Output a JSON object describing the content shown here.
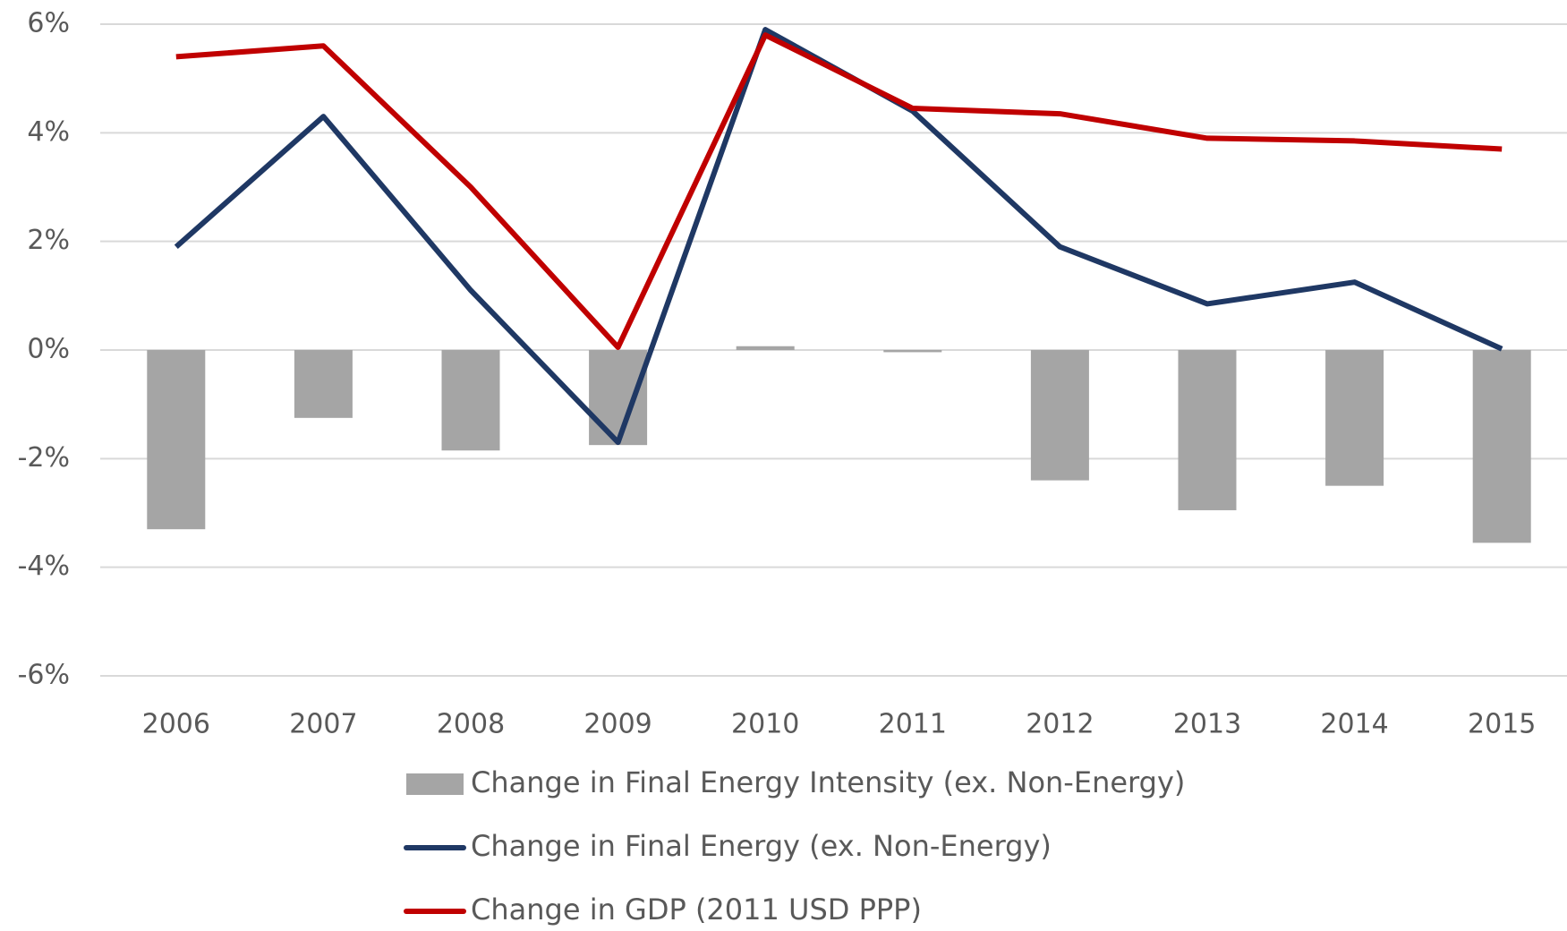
{
  "chart_data": {
    "type": "combo",
    "categories": [
      "2006",
      "2007",
      "2008",
      "2009",
      "2010",
      "2011",
      "2012",
      "2013",
      "2014",
      "2015"
    ],
    "series": [
      {
        "name": "Change in Final Energy Intensity (ex. Non-Energy)",
        "type": "bar",
        "color": "#a5a5a5",
        "values": [
          -3.3,
          -1.25,
          -1.85,
          -1.75,
          0.07,
          -0.04,
          -2.4,
          -2.95,
          -2.5,
          -3.55
        ]
      },
      {
        "name": "Change in Final Energy (ex. Non-Energy)",
        "type": "line",
        "color": "#1f3864",
        "values": [
          1.9,
          4.3,
          1.1,
          -1.7,
          5.9,
          4.4,
          1.9,
          0.85,
          1.25,
          0.02
        ]
      },
      {
        "name": "Change in GDP (2011 USD PPP)",
        "type": "line",
        "color": "#c00000",
        "values": [
          5.4,
          5.6,
          3.0,
          0.05,
          5.8,
          4.45,
          4.35,
          3.9,
          3.85,
          3.7
        ]
      }
    ],
    "ylim": [
      -6,
      6
    ],
    "yticks": [
      {
        "value": -6,
        "label": "-6%"
      },
      {
        "value": -4,
        "label": "-4%"
      },
      {
        "value": -2,
        "label": "-2%"
      },
      {
        "value": 0,
        "label": "0%"
      },
      {
        "value": 2,
        "label": "2%"
      },
      {
        "value": 4,
        "label": "4%"
      },
      {
        "value": 6,
        "label": "6%"
      }
    ],
    "grid": true,
    "legend": "bottom"
  }
}
